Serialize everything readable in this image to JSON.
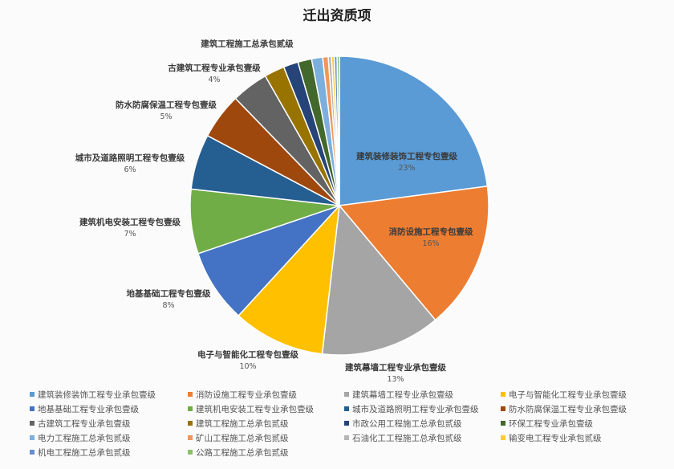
{
  "chart_data": {
    "type": "pie",
    "title": "迁出资质项",
    "slices": [
      {
        "name": "建筑装修装饰工程专业承包壹级",
        "value": 23,
        "label": "建筑装修装饰工程专包壹级",
        "pct_label": "23%",
        "color": "#5B9BD5"
      },
      {
        "name": "消防设施工程专业承包壹级",
        "value": 16,
        "label": "消防设施工程专包壹级",
        "pct_label": "16%",
        "color": "#ED7D31"
      },
      {
        "name": "建筑幕墙工程专业承包壹级",
        "value": 13,
        "label": "建筑幕墙工程专业承包壹级",
        "pct_label": "13%",
        "color": "#A5A5A5"
      },
      {
        "name": "电子与智能化工程专业承包壹级",
        "value": 10,
        "label": "电子与智能化工程专包壹级",
        "pct_label": "10%",
        "color": "#FFC000"
      },
      {
        "name": "地基基础工程专业承包壹级",
        "value": 8,
        "label": "地基基础工程专包壹级",
        "pct_label": "8%",
        "color": "#4472C4"
      },
      {
        "name": "建筑机电安装工程专业承包壹级",
        "value": 7,
        "label": "建筑机电安装工程专包壹级",
        "pct_label": "7%",
        "color": "#70AD47"
      },
      {
        "name": "城市及道路照明工程专业承包壹级",
        "value": 6,
        "label": "城市及道路照明工程专包壹级",
        "pct_label": "6%",
        "color": "#255E91"
      },
      {
        "name": "防水防腐保温工程专业承包壹级",
        "value": 5,
        "label": "防水防腐保温工程专包壹级",
        "pct_label": "5%",
        "color": "#9E480E"
      },
      {
        "name": "古建筑工程专业承包壹级",
        "value": 4,
        "label": "古建筑工程专业承包壹级",
        "pct_label": "4%",
        "color": "#636363"
      },
      {
        "name": "建筑工程施工总承包贰级",
        "value": 2.2,
        "label": "建筑工程施工总承包贰级",
        "pct_label": "",
        "color": "#997300"
      },
      {
        "name": "市政公用工程施工总承包贰级",
        "value": 1.6,
        "label": "",
        "pct_label": "",
        "color": "#264478"
      },
      {
        "name": "环保工程专业承包壹级",
        "value": 1.5,
        "label": "",
        "pct_label": "",
        "color": "#43682B"
      },
      {
        "name": "电力工程施工总承包贰级",
        "value": 1.2,
        "label": "",
        "pct_label": "",
        "color": "#7CAFDD"
      },
      {
        "name": "矿山工程施工总承包贰级",
        "value": 0.6,
        "label": "",
        "pct_label": "",
        "color": "#F1975A"
      },
      {
        "name": "石油化工工程施工总承包贰级",
        "value": 0.35,
        "label": "",
        "pct_label": "",
        "color": "#B7B7B7"
      },
      {
        "name": "输变电工程专业承包贰级",
        "value": 0.3,
        "label": "",
        "pct_label": "",
        "color": "#FFCD33"
      },
      {
        "name": "机电工程施工总承包贰级",
        "value": 0.3,
        "label": "",
        "pct_label": "",
        "color": "#698ED0"
      },
      {
        "name": "公路工程施工总承包贰级",
        "value": 0.25,
        "label": "",
        "pct_label": "",
        "color": "#8CC168"
      }
    ],
    "legend_position": "bottom"
  }
}
